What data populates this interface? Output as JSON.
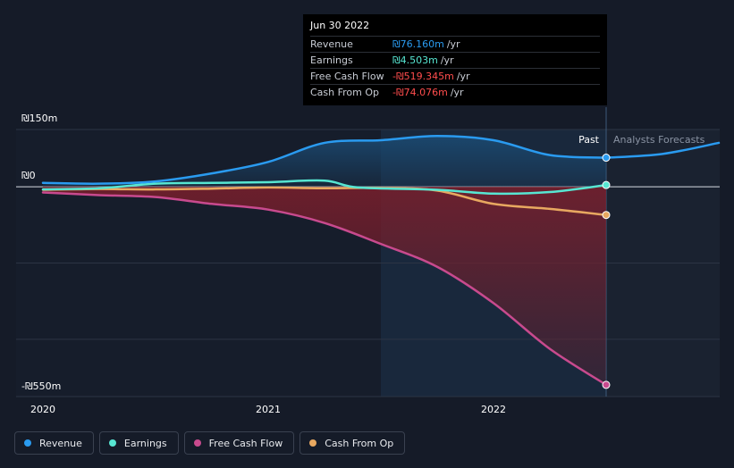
{
  "chart_data": {
    "type": "line",
    "y_ticks": [
      {
        "value": 150,
        "label": "₪150m"
      },
      {
        "value": 0,
        "label": "₪0"
      },
      {
        "value": -550,
        "label": "-₪550m"
      }
    ],
    "ylim": [
      -550,
      150
    ],
    "x_ticks": [
      {
        "value": 2020.0,
        "label": "2020"
      },
      {
        "value": 2021.0,
        "label": "2021"
      },
      {
        "value": 2022.0,
        "label": "2022"
      }
    ],
    "xlim": [
      2020.0,
      2023.0
    ],
    "past_label": "Past",
    "forecast_label": "Analysts Forecasts",
    "divider_x": 2022.5,
    "highlight_start_x": 2021.5,
    "grid": true,
    "series": [
      {
        "name": "Revenue",
        "color": "#2a9bf0",
        "points": [
          [
            2020.0,
            10
          ],
          [
            2020.25,
            8
          ],
          [
            2020.5,
            14
          ],
          [
            2020.75,
            35
          ],
          [
            2021.0,
            65
          ],
          [
            2021.25,
            115
          ],
          [
            2021.5,
            122
          ],
          [
            2021.75,
            133
          ],
          [
            2022.0,
            122
          ],
          [
            2022.25,
            83
          ],
          [
            2022.5,
            76.16
          ]
        ],
        "forecast": [
          [
            2022.5,
            76.16
          ],
          [
            2022.75,
            86
          ],
          [
            2023.0,
            115
          ]
        ]
      },
      {
        "name": "Earnings",
        "color": "#57e6d2",
        "points": [
          [
            2020.0,
            -7
          ],
          [
            2020.25,
            -4
          ],
          [
            2020.5,
            8
          ],
          [
            2020.75,
            10
          ],
          [
            2021.0,
            12
          ],
          [
            2021.25,
            16
          ],
          [
            2021.4,
            -2
          ],
          [
            2021.75,
            -8
          ],
          [
            2022.0,
            -18
          ],
          [
            2022.25,
            -14
          ],
          [
            2022.5,
            4.503
          ]
        ]
      },
      {
        "name": "Free Cash Flow",
        "color": "#c84a8e",
        "points": [
          [
            2020.0,
            -15
          ],
          [
            2020.25,
            -22
          ],
          [
            2020.5,
            -27
          ],
          [
            2020.75,
            -45
          ],
          [
            2021.0,
            -60
          ],
          [
            2021.25,
            -95
          ],
          [
            2021.5,
            -150
          ],
          [
            2021.75,
            -210
          ],
          [
            2022.0,
            -305
          ],
          [
            2022.25,
            -425
          ],
          [
            2022.5,
            -519.345
          ]
        ]
      },
      {
        "name": "Cash From Op",
        "color": "#e8a860",
        "points": [
          [
            2020.0,
            -8
          ],
          [
            2020.25,
            -6
          ],
          [
            2020.5,
            -7
          ],
          [
            2020.75,
            -5
          ],
          [
            2021.0,
            -2
          ],
          [
            2021.25,
            -4
          ],
          [
            2021.5,
            -3
          ],
          [
            2021.75,
            -10
          ],
          [
            2022.0,
            -45
          ],
          [
            2022.25,
            -58
          ],
          [
            2022.5,
            -74.076
          ]
        ]
      }
    ]
  },
  "tooltip": {
    "date": "Jun 30 2022",
    "rows": [
      {
        "label": "Revenue",
        "value": "₪76.160m",
        "unit": "/yr",
        "color": "#2a9bf0"
      },
      {
        "label": "Earnings",
        "value": "₪4.503m",
        "unit": "/yr",
        "color": "#57e6d2"
      },
      {
        "label": "Free Cash Flow",
        "value": "-₪519.345m",
        "unit": "/yr",
        "color": "#ff4d4d"
      },
      {
        "label": "Cash From Op",
        "value": "-₪74.076m",
        "unit": "/yr",
        "color": "#ff4d4d"
      }
    ]
  },
  "legend": [
    {
      "label": "Revenue",
      "color": "#2a9bf0"
    },
    {
      "label": "Earnings",
      "color": "#57e6d2"
    },
    {
      "label": "Free Cash Flow",
      "color": "#c84a8e"
    },
    {
      "label": "Cash From Op",
      "color": "#e8a860"
    }
  ]
}
